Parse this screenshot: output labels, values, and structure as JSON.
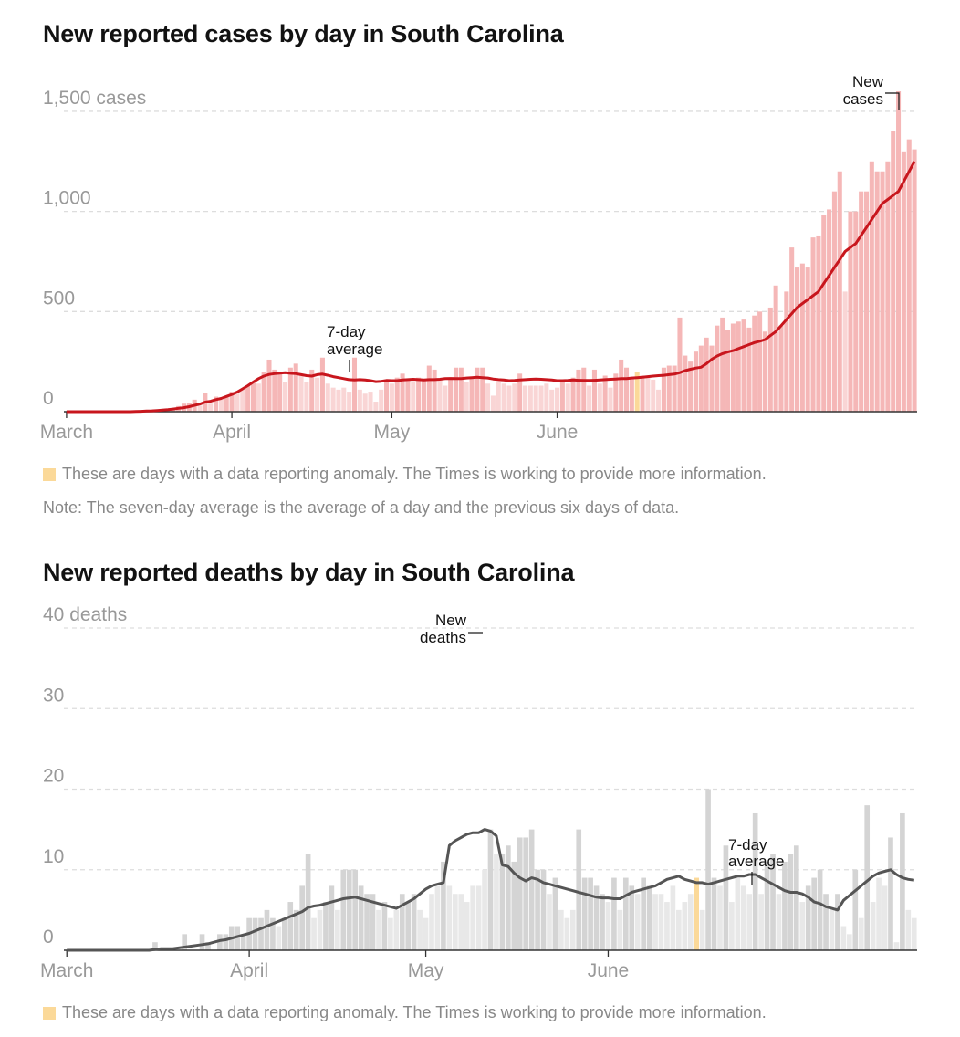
{
  "colors": {
    "case_bar": "#f5b7b7",
    "case_bar_light": "#f9d5d5",
    "case_line": "#c8161d",
    "death_bar": "#d4d4d4",
    "death_bar_light": "#e8e8e8",
    "death_line": "#555555",
    "anomaly": "#fbd999",
    "gridline": "#dddddd",
    "axis_text": "#999999"
  },
  "cases_chart": {
    "title": "New reported cases by day in South Carolina",
    "legend": "These are days with a data reporting anomaly. The Times is working to provide more information.",
    "note": "Note: The seven-day average is the average of a day and the previous six days of data.",
    "annotation_bars": [
      "New",
      "cases"
    ],
    "annotation_line": [
      "7-day",
      "average"
    ]
  },
  "deaths_chart": {
    "title": "New reported deaths by day in South Carolina",
    "legend": "These are days with a data reporting anomaly. The Times is working to provide more information.",
    "annotation_bars": [
      "New",
      "deaths"
    ],
    "annotation_line": [
      "7-day",
      "average"
    ]
  },
  "chart_data": [
    {
      "type": "bar",
      "title": "New reported cases by day in South Carolina",
      "ylabel": "cases",
      "ylim": [
        0,
        1600
      ],
      "y_ticks": [
        0,
        500,
        1000,
        1500
      ],
      "y_tick_labels": [
        "0",
        "500",
        "1,000",
        "1,500 cases"
      ],
      "x_ticks": [
        {
          "label": "March",
          "day": 0
        },
        {
          "label": "April",
          "day": 31
        },
        {
          "label": "May",
          "day": 61
        },
        {
          "label": "June",
          "day": 92
        }
      ],
      "anomaly_days": [
        107
      ],
      "series": [
        {
          "name": "New cases",
          "values": [
            0,
            0,
            0,
            0,
            0,
            0,
            0,
            0,
            0,
            0,
            0,
            0,
            0,
            0,
            0,
            2,
            3,
            5,
            8,
            10,
            18,
            28,
            40,
            45,
            60,
            30,
            95,
            40,
            75,
            60,
            80,
            100,
            90,
            110,
            130,
            150,
            140,
            200,
            260,
            210,
            200,
            150,
            220,
            240,
            180,
            150,
            210,
            170,
            270,
            140,
            120,
            110,
            120,
            100,
            270,
            110,
            90,
            100,
            50,
            110,
            160,
            140,
            170,
            190,
            160,
            150,
            170,
            160,
            230,
            210,
            160,
            130,
            170,
            220,
            220,
            150,
            170,
            220,
            220,
            140,
            80,
            150,
            140,
            130,
            140,
            190,
            130,
            130,
            130,
            130,
            140,
            110,
            120,
            160,
            140,
            170,
            210,
            220,
            130,
            210,
            140,
            180,
            120,
            190,
            260,
            220,
            170,
            200,
            180,
            170,
            160,
            110,
            220,
            230,
            230,
            470,
            280,
            250,
            300,
            330,
            370,
            330,
            430,
            470,
            410,
            440,
            450,
            460,
            420,
            480,
            500,
            400,
            520,
            630,
            430,
            600,
            820,
            720,
            740,
            720,
            870,
            880,
            980,
            1010,
            1100,
            1200,
            600,
            1000,
            1000,
            1100,
            1100,
            1250,
            1200,
            1200,
            1250,
            1400,
            1600,
            1300,
            1360,
            1310
          ],
          "line_sample_comment": "values above are daily counts"
        },
        {
          "name": "7-day average",
          "values": [
            0,
            0,
            0,
            0,
            0,
            0,
            0,
            0,
            0,
            0,
            0,
            0,
            0,
            1,
            2,
            3,
            4,
            6,
            8,
            10,
            13,
            17,
            20,
            25,
            32,
            38,
            48,
            52,
            60,
            66,
            76,
            86,
            98,
            114,
            130,
            148,
            165,
            178,
            186,
            190,
            193,
            195,
            192,
            190,
            185,
            180,
            178,
            185,
            188,
            182,
            175,
            170,
            165,
            160,
            158,
            160,
            158,
            155,
            150,
            152,
            156,
            155,
            155,
            158,
            160,
            162,
            160,
            158,
            160,
            160,
            162,
            165,
            166,
            165,
            165,
            168,
            170,
            172,
            170,
            168,
            163,
            160,
            158,
            155,
            156,
            158,
            160,
            162,
            163,
            162,
            160,
            158,
            155,
            155,
            156,
            158,
            157,
            156,
            156,
            157,
            158,
            160,
            162,
            163,
            165,
            165,
            168,
            170,
            172,
            175,
            178,
            180,
            182,
            185,
            188,
            195,
            205,
            212,
            218,
            222,
            240,
            262,
            278,
            290,
            298,
            305,
            315,
            325,
            335,
            345,
            352,
            360,
            380,
            400,
            430,
            460,
            490,
            520,
            540,
            560,
            580,
            600,
            640,
            680,
            720,
            760,
            800,
            820,
            840,
            880,
            920,
            960,
            1000,
            1040,
            1060,
            1080,
            1100,
            1150,
            1200,
            1250
          ]
        }
      ]
    },
    {
      "type": "bar",
      "title": "New reported deaths by day in South Carolina",
      "ylabel": "deaths",
      "ylim": [
        0,
        40
      ],
      "y_ticks": [
        0,
        10,
        20,
        30,
        40
      ],
      "y_tick_labels": [
        "0",
        "10",
        "20",
        "30",
        "40 deaths"
      ],
      "x_ticks": [
        {
          "label": "March",
          "day": 0
        },
        {
          "label": "April",
          "day": 31
        },
        {
          "label": "May",
          "day": 61
        },
        {
          "label": "June",
          "day": 92
        }
      ],
      "anomaly_days": [
        107
      ],
      "series": [
        {
          "name": "New deaths",
          "values": [
            0,
            0,
            0,
            0,
            0,
            0,
            0,
            0,
            0,
            0,
            0,
            0,
            0,
            0,
            0,
            1,
            0,
            0,
            0,
            0,
            2,
            0,
            0,
            2,
            1,
            0,
            2,
            2,
            3,
            3,
            2,
            4,
            4,
            4,
            5,
            4,
            3,
            4,
            6,
            5,
            8,
            12,
            4,
            5,
            6,
            8,
            5,
            10,
            10,
            10,
            8,
            7,
            7,
            5,
            6,
            4,
            5,
            7,
            6,
            7,
            5,
            4,
            7,
            8,
            11,
            8,
            7,
            7,
            6,
            8,
            8,
            10,
            15,
            12,
            12,
            13,
            11,
            14,
            14,
            15,
            10,
            10,
            7,
            9,
            5,
            4,
            5,
            15,
            9,
            9,
            8,
            7,
            6,
            9,
            5,
            9,
            8,
            7,
            9,
            8,
            7,
            7,
            6,
            8,
            5,
            6,
            7,
            9,
            5,
            20,
            9,
            8,
            13,
            6,
            9,
            8,
            7,
            17,
            7,
            11,
            12,
            7,
            11,
            12,
            13,
            6,
            8,
            9,
            10,
            7,
            5,
            7,
            3,
            2,
            10,
            4,
            18,
            6,
            9,
            8,
            14,
            1,
            17,
            5,
            4
          ],
          "line_sample_comment": "values above are daily counts"
        },
        {
          "name": "7-day average",
          "values": [
            0,
            0,
            0,
            0,
            0,
            0,
            0,
            0,
            0,
            0,
            0,
            0,
            0,
            0,
            0,
            0.1,
            0.2,
            0.2,
            0.2,
            0.3,
            0.4,
            0.5,
            0.6,
            0.7,
            0.8,
            1,
            1.2,
            1.3,
            1.5,
            1.7,
            1.9,
            2.1,
            2.4,
            2.7,
            3,
            3.3,
            3.6,
            3.9,
            4.2,
            4.5,
            4.8,
            5.3,
            5.5,
            5.6,
            5.8,
            6,
            6.2,
            6.4,
            6.5,
            6.6,
            6.4,
            6.2,
            6,
            5.8,
            5.6,
            5.4,
            5.2,
            5.6,
            6,
            6.4,
            7,
            7.6,
            8,
            8.2,
            8.4,
            13,
            13.6,
            14,
            14.4,
            14.6,
            14.6,
            15,
            14.8,
            14.2,
            10.6,
            10.4,
            9.6,
            9,
            8.6,
            9,
            8.8,
            8.4,
            8.2,
            8,
            7.8,
            7.6,
            7.4,
            7.2,
            7,
            6.8,
            6.6,
            6.5,
            6.5,
            6.4,
            6.4,
            6.8,
            7.2,
            7.4,
            7.6,
            7.8,
            8,
            8.4,
            8.8,
            9,
            9.2,
            8.8,
            8.6,
            8.4,
            8.4,
            8.2,
            8.4,
            8.6,
            8.8,
            9,
            9.2,
            9.2,
            9.4,
            9.4,
            9,
            8.6,
            8.2,
            7.8,
            7.4,
            7.2,
            7.2,
            7,
            6.6,
            6,
            5.8,
            5.4,
            5.2,
            5,
            6.2,
            6.8,
            7.4,
            8,
            8.6,
            9.2,
            9.6,
            9.8,
            10,
            9.4,
            9,
            8.8,
            8.7
          ]
        }
      ]
    }
  ]
}
